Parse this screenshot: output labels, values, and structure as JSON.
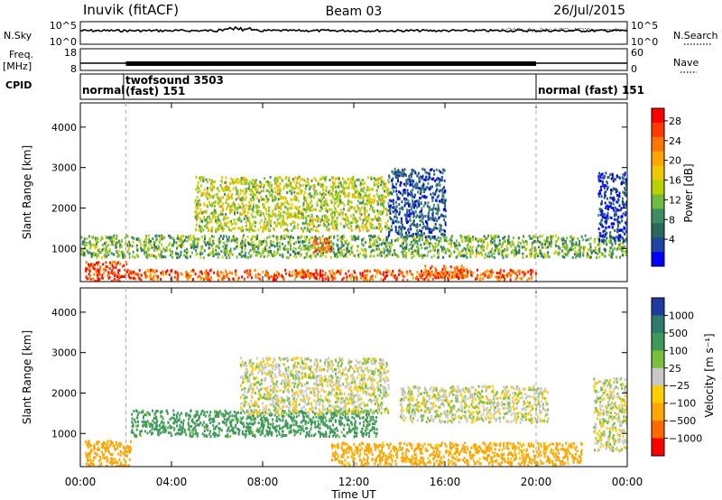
{
  "header": {
    "station": "Inuvik  (fitACF)",
    "beam": "Beam 03",
    "date": "26/Jul/2015"
  },
  "aux_labels": {
    "nsky": "N.Sky",
    "nsearch": "N.Search",
    "freq": "Freq.",
    "freq_unit": "[MHz]",
    "nave": "Nave",
    "cpid": "CPID"
  },
  "aux_ticks": {
    "sky_left": [
      "10^5",
      "10^0"
    ],
    "sky_right": [
      "10^5",
      "10^0"
    ],
    "freq_left": [
      "18",
      "8"
    ],
    "freq_right": [
      "60",
      "0"
    ]
  },
  "cpid_segments": [
    {
      "start_hour": 0,
      "end_hour": 1.9,
      "label": "normal",
      "label2": ""
    },
    {
      "start_hour": 1.9,
      "end_hour": 20.0,
      "label": "twofsound 3503",
      "label2": "(fast) 151"
    },
    {
      "start_hour": 20.0,
      "end_hour": 24,
      "label": "normal (fast) 151",
      "label2": ""
    }
  ],
  "x_axis": {
    "label": "Time UT",
    "ticks": [
      "00:00",
      "04:00",
      "08:00",
      "12:00",
      "16:00",
      "20:00",
      "00:00"
    ]
  },
  "power_colorbar": {
    "title": "Power [dB]",
    "ticks": [
      "28",
      "24",
      "20",
      "16",
      "12",
      "8",
      "4"
    ],
    "colors": [
      "#ff0000",
      "#ff3a00",
      "#ff7500",
      "#ffa500",
      "#f0c800",
      "#b8d200",
      "#6fbb3c",
      "#3c8c64",
      "#2a6a5a",
      "#1e46a0",
      "#0000ff"
    ]
  },
  "velocity_colorbar": {
    "title": "Velocity [m s⁻¹]",
    "ticks": [
      "1000",
      "500",
      "100",
      "25",
      "−25",
      "−100",
      "−500",
      "−1000"
    ],
    "colors": [
      "#1e3ca0",
      "#2e7a6e",
      "#3f9a5a",
      "#7bbf3e",
      "#c8c8c8",
      "#ffcd00",
      "#ffa500",
      "#ff6a00",
      "#ff0000"
    ]
  },
  "chart_data": [
    {
      "type": "heatmap",
      "title": "Power",
      "xlabel": "Time UT",
      "ylabel": "Slant Range [km]",
      "x_range_hours": [
        0,
        24
      ],
      "ylim": [
        180,
        4600
      ],
      "y_ticks": [
        1000,
        2000,
        3000,
        4000
      ],
      "colorbar_label": "Power [dB]",
      "regions": [
        {
          "t": [
            0.2,
            2.0
          ],
          "r": [
            200,
            700
          ],
          "value_db": 28
        },
        {
          "t": [
            2.0,
            20.0
          ],
          "r": [
            250,
            500
          ],
          "value_db": 26
        },
        {
          "t": [
            9.6,
            10.6
          ],
          "r": [
            250,
            480
          ],
          "value_db": 28
        },
        {
          "t": [
            15.0,
            17.0
          ],
          "r": [
            300,
            600
          ],
          "value_db": 26
        },
        {
          "t": [
            0.0,
            24.0
          ],
          "r": [
            800,
            1350
          ],
          "value_db": 14
        },
        {
          "t": [
            5.0,
            13.5
          ],
          "r": [
            1450,
            2800
          ],
          "value_db": 17
        },
        {
          "t": [
            10.2,
            11.0
          ],
          "r": [
            950,
            1300
          ],
          "value_db": 26
        },
        {
          "t": [
            13.5,
            16.0
          ],
          "r": [
            1300,
            3000
          ],
          "value_db": 8
        },
        {
          "t": [
            22.7,
            24.0
          ],
          "r": [
            1200,
            2900
          ],
          "value_db": 6
        }
      ]
    },
    {
      "type": "heatmap",
      "title": "Velocity",
      "xlabel": "Time UT",
      "ylabel": "Slant Range [km]",
      "x_range_hours": [
        0,
        24
      ],
      "ylim": [
        180,
        4600
      ],
      "y_ticks": [
        1000,
        2000,
        3000,
        4000
      ],
      "colorbar_label": "Velocity [m s⁻¹]",
      "regions": [
        {
          "t": [
            0.2,
            2.2
          ],
          "r": [
            200,
            850
          ],
          "value_ms": -200
        },
        {
          "t": [
            2.2,
            13.0
          ],
          "r": [
            950,
            1600
          ],
          "value_ms": 150
        },
        {
          "t": [
            7.0,
            13.5
          ],
          "r": [
            1500,
            2900
          ],
          "value_ms": 0
        },
        {
          "t": [
            14.0,
            20.5
          ],
          "r": [
            1300,
            2200
          ],
          "value_ms": 0
        },
        {
          "t": [
            11.0,
            22.0
          ],
          "r": [
            250,
            800
          ],
          "value_ms": -150
        },
        {
          "t": [
            22.5,
            24.0
          ],
          "r": [
            600,
            2400
          ],
          "value_ms": 0
        }
      ]
    }
  ]
}
